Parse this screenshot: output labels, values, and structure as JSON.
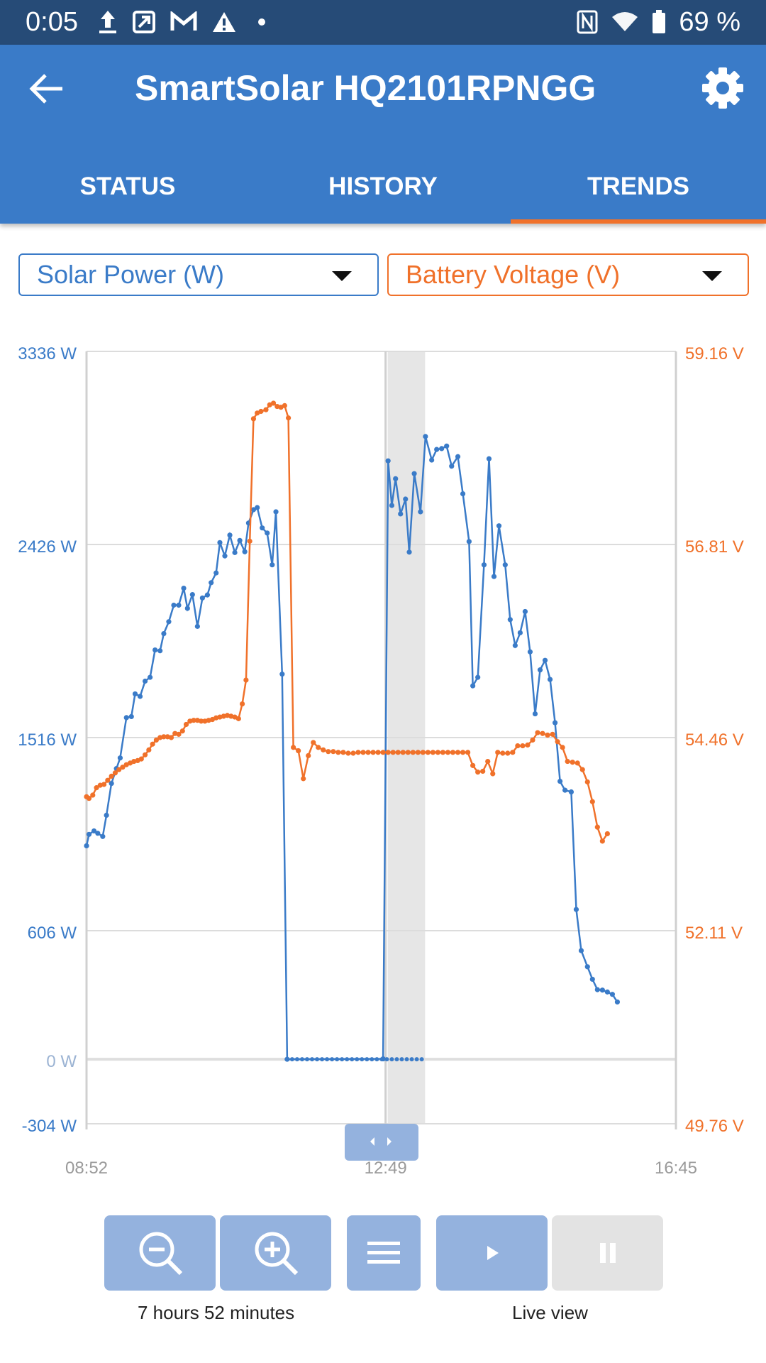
{
  "status_bar": {
    "time": "0:05",
    "battery_pct": "69 %"
  },
  "app": {
    "title": "SmartSolar HQ2101RPNGG"
  },
  "tabs": [
    {
      "label": "STATUS"
    },
    {
      "label": "HISTORY"
    },
    {
      "label": "TRENDS",
      "active": true
    }
  ],
  "selectors": {
    "left": "Solar Power (W)",
    "right": "Battery Voltage (V)"
  },
  "colors": {
    "primary": "#3a7bc8",
    "accent": "#f0712a",
    "statusbar": "#264b77"
  },
  "chart_data": {
    "type": "line",
    "x_ticks": [
      "08:52",
      "12:49",
      "16:45"
    ],
    "y_left": {
      "ticks": [
        "3336 W",
        "2426 W",
        "1516 W",
        "606 W",
        "0 W",
        "-304 W"
      ],
      "range": [
        -304,
        3336
      ]
    },
    "y_right": {
      "ticks": [
        "59.16 V",
        "56.81 V",
        "54.46 V",
        "52.11 V",
        "49.76 V"
      ],
      "range": [
        49.76,
        59.16
      ]
    },
    "x_range_minutes": [
      0,
      473
    ],
    "highlight_window_minutes": [
      240,
      270
    ],
    "series": [
      {
        "name": "Solar Power (W)",
        "axis": "left",
        "color": "#3a7bc8",
        "points": [
          [
            0,
            1006
          ],
          [
            2,
            1060
          ],
          [
            6,
            1076
          ],
          [
            9,
            1065
          ],
          [
            13,
            1050
          ],
          [
            16,
            1150
          ],
          [
            20,
            1300
          ],
          [
            24,
            1370
          ],
          [
            27,
            1420
          ],
          [
            32,
            1610
          ],
          [
            36,
            1615
          ],
          [
            39,
            1722
          ],
          [
            43,
            1710
          ],
          [
            47,
            1782
          ],
          [
            51,
            1800
          ],
          [
            55,
            1929
          ],
          [
            59,
            1925
          ],
          [
            62,
            2006
          ],
          [
            66,
            2062
          ],
          [
            70,
            2140
          ],
          [
            74,
            2140
          ],
          [
            78,
            2220
          ],
          [
            81,
            2125
          ],
          [
            85,
            2190
          ],
          [
            89,
            2040
          ],
          [
            93,
            2174
          ],
          [
            97,
            2188
          ],
          [
            100,
            2246
          ],
          [
            104,
            2292
          ],
          [
            107,
            2435
          ],
          [
            111,
            2372
          ],
          [
            115,
            2470
          ],
          [
            119,
            2388
          ],
          [
            123,
            2445
          ],
          [
            127,
            2392
          ],
          [
            130,
            2527
          ],
          [
            134,
            2590
          ],
          [
            137,
            2600
          ],
          [
            141,
            2504
          ],
          [
            145,
            2480
          ],
          [
            149,
            2330
          ],
          [
            152,
            2580
          ],
          [
            157,
            1815
          ],
          [
            161,
            0
          ],
          [
            238,
            2
          ],
          [
            242,
            2820
          ],
          [
            245,
            2610
          ],
          [
            248,
            2736
          ],
          [
            252,
            2570
          ],
          [
            256,
            2640
          ],
          [
            259,
            2390
          ],
          [
            263,
            2760
          ],
          [
            268,
            2580
          ],
          [
            272,
            2935
          ],
          [
            277,
            2824
          ],
          [
            281,
            2874
          ],
          [
            285,
            2878
          ],
          [
            289,
            2890
          ],
          [
            293,
            2795
          ],
          [
            298,
            2840
          ],
          [
            302,
            2665
          ],
          [
            307,
            2440
          ],
          [
            310,
            1760
          ],
          [
            314,
            1800
          ],
          [
            319,
            2330
          ],
          [
            323,
            2830
          ],
          [
            327,
            2275
          ],
          [
            331,
            2514
          ],
          [
            336,
            2330
          ],
          [
            340,
            2072
          ],
          [
            344,
            1950
          ],
          [
            348,
            2010
          ],
          [
            352,
            2110
          ],
          [
            356,
            1920
          ],
          [
            360,
            1628
          ],
          [
            364,
            1835
          ],
          [
            368,
            1880
          ],
          [
            372,
            1790
          ],
          [
            376,
            1586
          ],
          [
            380,
            1310
          ],
          [
            384,
            1268
          ],
          [
            389,
            1260
          ],
          [
            393,
            706
          ],
          [
            397,
            512
          ],
          [
            402,
            436
          ],
          [
            406,
            377
          ],
          [
            410,
            328
          ],
          [
            414,
            326
          ],
          [
            418,
            317
          ],
          [
            422,
            306
          ],
          [
            426,
            270
          ]
        ]
      },
      {
        "name": "Battery Voltage (V)",
        "axis": "right",
        "color": "#f0712a",
        "points": [
          [
            0,
            53.74
          ],
          [
            2,
            53.72
          ],
          [
            5,
            53.76
          ],
          [
            8,
            53.85
          ],
          [
            11,
            53.88
          ],
          [
            14,
            53.89
          ],
          [
            17,
            53.94
          ],
          [
            20,
            53.99
          ],
          [
            23,
            54.03
          ],
          [
            26,
            54.07
          ],
          [
            29,
            54.1
          ],
          [
            32,
            54.13
          ],
          [
            35,
            54.15
          ],
          [
            38,
            54.17
          ],
          [
            41,
            54.18
          ],
          [
            44,
            54.2
          ],
          [
            47,
            54.25
          ],
          [
            50,
            54.31
          ],
          [
            53,
            54.38
          ],
          [
            56,
            54.43
          ],
          [
            59,
            54.46
          ],
          [
            62,
            54.47
          ],
          [
            65,
            54.47
          ],
          [
            68,
            54.46
          ],
          [
            71,
            54.51
          ],
          [
            74,
            54.5
          ],
          [
            77,
            54.54
          ],
          [
            80,
            54.62
          ],
          [
            83,
            54.66
          ],
          [
            86,
            54.67
          ],
          [
            89,
            54.67
          ],
          [
            92,
            54.66
          ],
          [
            95,
            54.66
          ],
          [
            98,
            54.67
          ],
          [
            101,
            54.68
          ],
          [
            104,
            54.7
          ],
          [
            107,
            54.71
          ],
          [
            110,
            54.72
          ],
          [
            113,
            54.73
          ],
          [
            116,
            54.72
          ],
          [
            119,
            54.71
          ],
          [
            122,
            54.69
          ],
          [
            125,
            54.87
          ],
          [
            128,
            55.16
          ],
          [
            131,
            56.85
          ],
          [
            134,
            58.34
          ],
          [
            137,
            58.41
          ],
          [
            140,
            58.43
          ],
          [
            144,
            58.45
          ],
          [
            147,
            58.51
          ],
          [
            150,
            58.53
          ],
          [
            153,
            58.49
          ],
          [
            156,
            58.48
          ],
          [
            159,
            58.5
          ],
          [
            162,
            58.35
          ],
          [
            166,
            54.34
          ],
          [
            170,
            54.3
          ],
          [
            174,
            53.96
          ],
          [
            178,
            54.24
          ],
          [
            182,
            54.4
          ],
          [
            186,
            54.34
          ],
          [
            190,
            54.31
          ],
          [
            194,
            54.29
          ],
          [
            198,
            54.29
          ],
          [
            202,
            54.28
          ],
          [
            206,
            54.28
          ],
          [
            210,
            54.27
          ],
          [
            214,
            54.27
          ],
          [
            218,
            54.28
          ],
          [
            222,
            54.28
          ],
          [
            226,
            54.28
          ],
          [
            230,
            54.28
          ],
          [
            234,
            54.28
          ],
          [
            238,
            54.28
          ],
          [
            242,
            54.28
          ],
          [
            246,
            54.28
          ],
          [
            250,
            54.28
          ],
          [
            254,
            54.28
          ],
          [
            258,
            54.28
          ],
          [
            262,
            54.28
          ],
          [
            266,
            54.28
          ],
          [
            270,
            54.28
          ],
          [
            274,
            54.28
          ],
          [
            278,
            54.28
          ],
          [
            282,
            54.28
          ],
          [
            286,
            54.28
          ],
          [
            290,
            54.28
          ],
          [
            294,
            54.28
          ],
          [
            298,
            54.28
          ],
          [
            302,
            54.28
          ],
          [
            306,
            54.28
          ],
          [
            310,
            54.12
          ],
          [
            314,
            54.04
          ],
          [
            318,
            54.05
          ],
          [
            322,
            54.17
          ],
          [
            326,
            54.02
          ],
          [
            330,
            54.28
          ],
          [
            334,
            54.27
          ],
          [
            338,
            54.27
          ],
          [
            342,
            54.28
          ],
          [
            346,
            54.36
          ],
          [
            350,
            54.36
          ],
          [
            354,
            54.37
          ],
          [
            358,
            54.43
          ],
          [
            362,
            54.52
          ],
          [
            366,
            54.51
          ],
          [
            370,
            54.49
          ],
          [
            374,
            54.5
          ],
          [
            378,
            54.41
          ],
          [
            382,
            54.34
          ],
          [
            386,
            54.17
          ],
          [
            390,
            54.16
          ],
          [
            394,
            54.15
          ],
          [
            398,
            54.07
          ],
          [
            402,
            53.92
          ],
          [
            406,
            53.68
          ],
          [
            410,
            53.37
          ],
          [
            414,
            53.2
          ],
          [
            418,
            53.29
          ]
        ]
      }
    ]
  },
  "controls": {
    "zoom_caption": "7 hours 52 minutes",
    "live_caption": "Live view"
  }
}
